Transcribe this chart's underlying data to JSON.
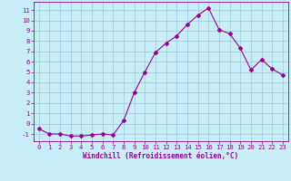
{
  "x": [
    0,
    1,
    2,
    3,
    4,
    5,
    6,
    7,
    8,
    9,
    10,
    11,
    12,
    13,
    14,
    15,
    16,
    17,
    18,
    19,
    20,
    21,
    22,
    23
  ],
  "y": [
    -0.5,
    -1.0,
    -1.0,
    -1.2,
    -1.2,
    -1.1,
    -1.0,
    -1.1,
    0.3,
    3.0,
    5.0,
    6.9,
    7.8,
    8.5,
    9.6,
    10.5,
    11.2,
    9.1,
    8.7,
    7.3,
    5.2,
    6.2,
    5.3,
    4.7
  ],
  "line_color": "#990099",
  "marker": "D",
  "marker_size": 2,
  "bg_color": "#c8eef8",
  "grid_color": "#9ec8d8",
  "xlabel": "Windchill (Refroidissement éolien,°C)",
  "ylabel_ticks": [
    -1,
    0,
    1,
    2,
    3,
    4,
    5,
    6,
    7,
    8,
    9,
    10,
    11
  ],
  "xlim": [
    -0.5,
    23.5
  ],
  "ylim": [
    -1.7,
    11.8
  ],
  "label_fontsize": 5.2,
  "xlabel_fontsize": 5.5
}
